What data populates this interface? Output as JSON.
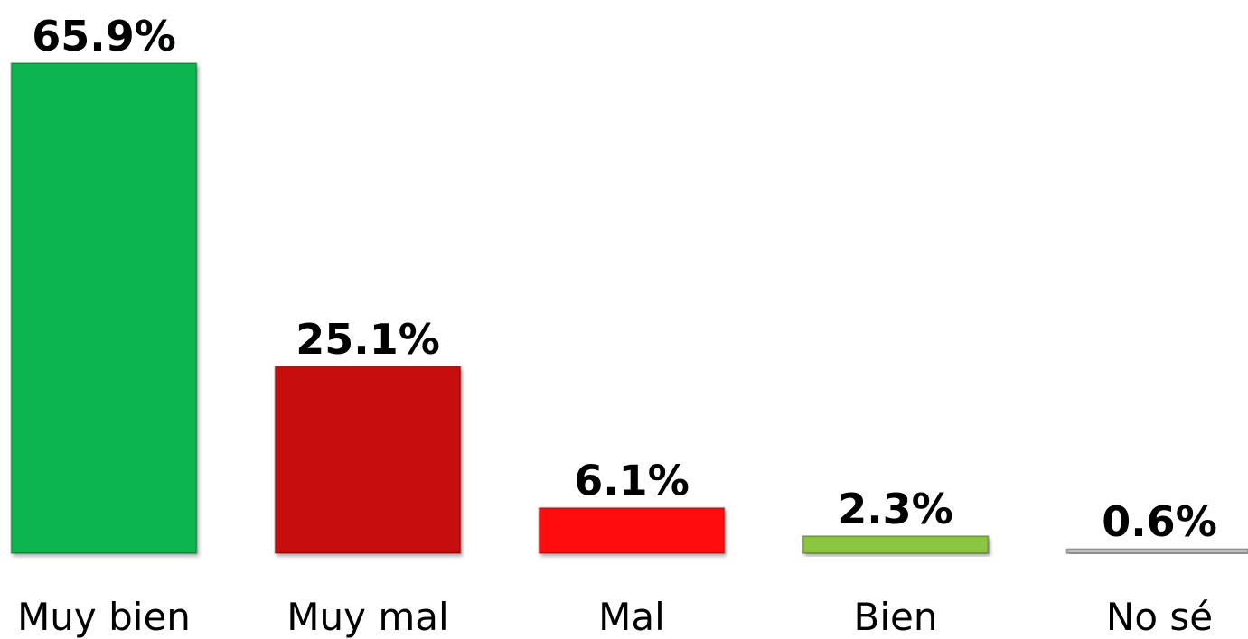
{
  "chart_data": {
    "type": "bar",
    "categories": [
      "Muy bien",
      "Muy mal",
      "Mal",
      "Bien",
      "No sé"
    ],
    "values": [
      65.9,
      25.1,
      6.1,
      2.3,
      0.6
    ],
    "value_labels": [
      "65.9%",
      "25.1%",
      "6.1%",
      "2.3%",
      "0.6%"
    ],
    "colors": [
      "#0bb550",
      "#c80808",
      "#ff1010",
      "#8cc63f",
      "#bfbfbf"
    ]
  }
}
